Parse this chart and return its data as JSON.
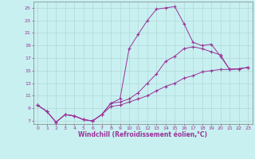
{
  "xlabel": "Windchill (Refroidissement éolien,°C)",
  "bg_color": "#c8f0f0",
  "grid_color": "#b0d8d8",
  "line_color": "#993399",
  "xlim": [
    -0.5,
    23.5
  ],
  "ylim": [
    6.5,
    26
  ],
  "xticks": [
    0,
    1,
    2,
    3,
    4,
    5,
    6,
    7,
    8,
    9,
    10,
    11,
    12,
    13,
    14,
    15,
    16,
    17,
    18,
    19,
    20,
    21,
    22,
    23
  ],
  "yticks": [
    7,
    9,
    11,
    13,
    15,
    17,
    19,
    21,
    23,
    25
  ],
  "line1_x": [
    0,
    1,
    2,
    3,
    4,
    5,
    6,
    7,
    8,
    9,
    10,
    11,
    12,
    13,
    14,
    15,
    16,
    17,
    18,
    19,
    20,
    21,
    22,
    23
  ],
  "line1_y": [
    9.5,
    8.5,
    6.8,
    8.0,
    7.8,
    7.2,
    7.0,
    8.0,
    9.8,
    10.5,
    18.5,
    20.8,
    23.0,
    24.8,
    25.0,
    25.2,
    22.5,
    19.5,
    19.0,
    19.2,
    17.3,
    15.2,
    15.3,
    15.5
  ],
  "line2_x": [
    0,
    1,
    2,
    3,
    4,
    5,
    6,
    7,
    8,
    9,
    10,
    11,
    12,
    13,
    14,
    15,
    16,
    17,
    18,
    19,
    20,
    21,
    22,
    23
  ],
  "line2_y": [
    9.5,
    8.5,
    6.8,
    8.0,
    7.8,
    7.2,
    7.0,
    8.0,
    9.8,
    10.0,
    10.5,
    11.5,
    13.0,
    14.5,
    16.5,
    17.3,
    18.5,
    18.8,
    18.5,
    18.0,
    17.5,
    15.2,
    15.3,
    15.5
  ],
  "line3_x": [
    0,
    1,
    2,
    3,
    4,
    5,
    6,
    7,
    8,
    9,
    10,
    11,
    12,
    13,
    14,
    15,
    16,
    17,
    18,
    19,
    20,
    21,
    22,
    23
  ],
  "line3_y": [
    9.5,
    8.5,
    6.8,
    8.0,
    7.8,
    7.2,
    7.0,
    8.0,
    9.3,
    9.5,
    10.0,
    10.5,
    11.0,
    11.8,
    12.5,
    13.0,
    13.8,
    14.2,
    14.8,
    15.0,
    15.2,
    15.2,
    15.3,
    15.5
  ]
}
